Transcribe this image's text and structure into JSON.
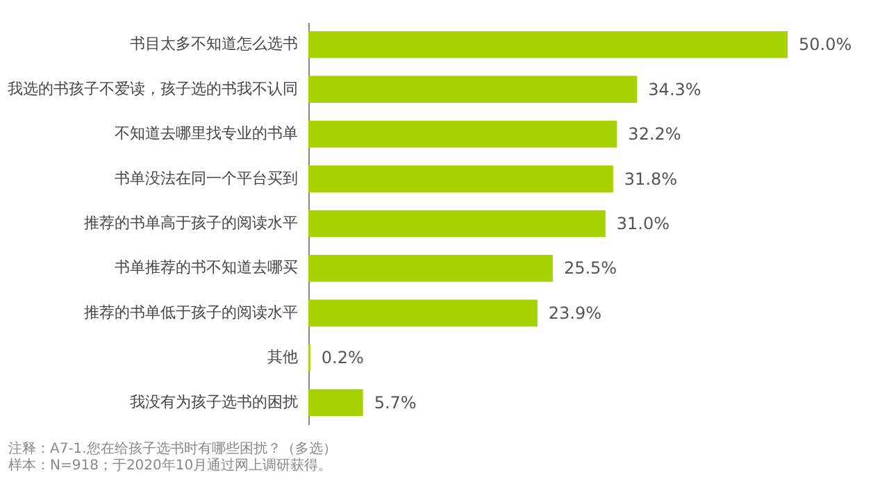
{
  "chart_data": {
    "type": "bar",
    "orientation": "horizontal",
    "categories": [
      "书目太多不知道怎么选书",
      "我选的书孩子不爱读，孩子选的书我不认同",
      "不知道去哪里找专业的书单",
      "书单没法在同一个平台买到",
      "推荐的书单高于孩子的阅读水平",
      "书单推荐的书不知道去哪买",
      "推荐的书单低于孩子的阅读水平",
      "其他",
      "我没有为孩子选书的困扰"
    ],
    "values": [
      50.0,
      34.3,
      32.2,
      31.8,
      31.0,
      25.5,
      23.9,
      0.2,
      5.7
    ],
    "value_labels": [
      "50.0%",
      "34.3%",
      "32.2%",
      "31.8%",
      "31.0%",
      "25.5%",
      "23.9%",
      "0.2%",
      "5.7%"
    ],
    "color": "#a6d200",
    "annotations": [
      "注释：A7-1.您在给孩子选书时有哪些困扰？（多选）",
      "样本：N=918；于2020年10月通过网上调研获得。"
    ]
  }
}
